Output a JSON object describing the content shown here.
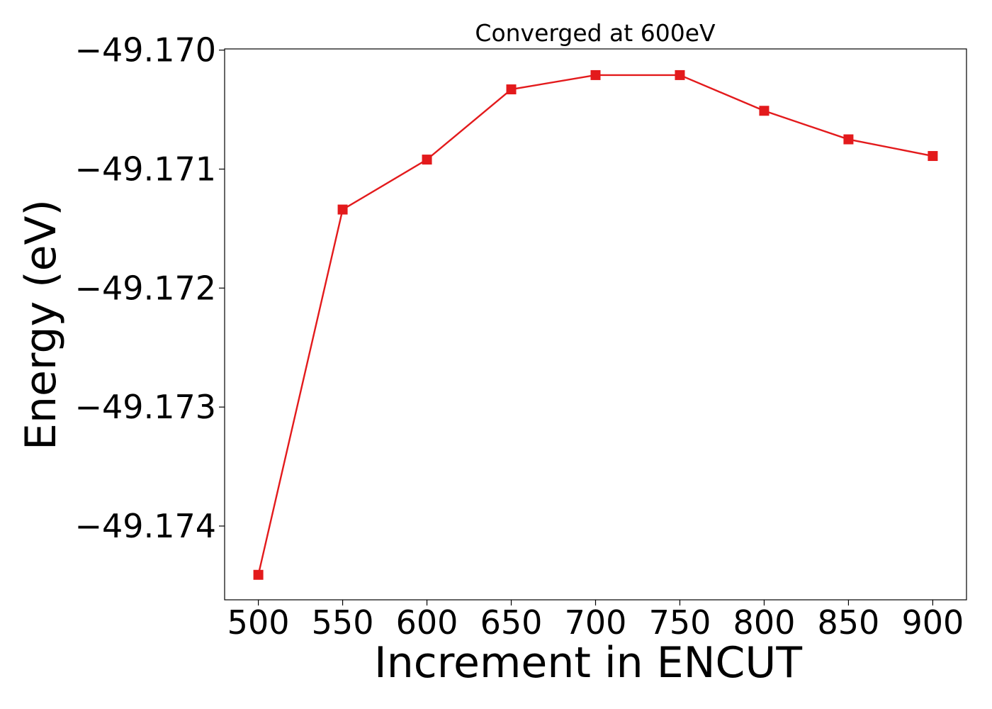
{
  "chart_data": {
    "type": "line",
    "title": "Converged at 600eV",
    "xlabel": "Increment in ENCUT",
    "ylabel": "Energy (eV)",
    "x": [
      500,
      550,
      600,
      650,
      700,
      750,
      800,
      850,
      900
    ],
    "series": [
      {
        "values": [
          -49.17441,
          -49.17134,
          -49.17092,
          -49.17033,
          -49.17021,
          -49.17021,
          -49.17051,
          -49.17075,
          -49.17089
        ],
        "color": "#e31a1c",
        "marker": "square"
      }
    ],
    "xticks": [
      500,
      550,
      600,
      650,
      700,
      750,
      800,
      850,
      900
    ],
    "xtick_labels": [
      "500",
      "550",
      "600",
      "650",
      "700",
      "750",
      "800",
      "850",
      "900"
    ],
    "yticks": [
      -49.17,
      -49.171,
      -49.172,
      -49.173,
      -49.174
    ],
    "ytick_labels": [
      "−49.170",
      "−49.171",
      "−49.172",
      "−49.173",
      "−49.174"
    ],
    "xlim": [
      480,
      920
    ],
    "ylim": [
      -49.17462,
      -49.16999
    ],
    "grid": false,
    "legend": "none"
  }
}
